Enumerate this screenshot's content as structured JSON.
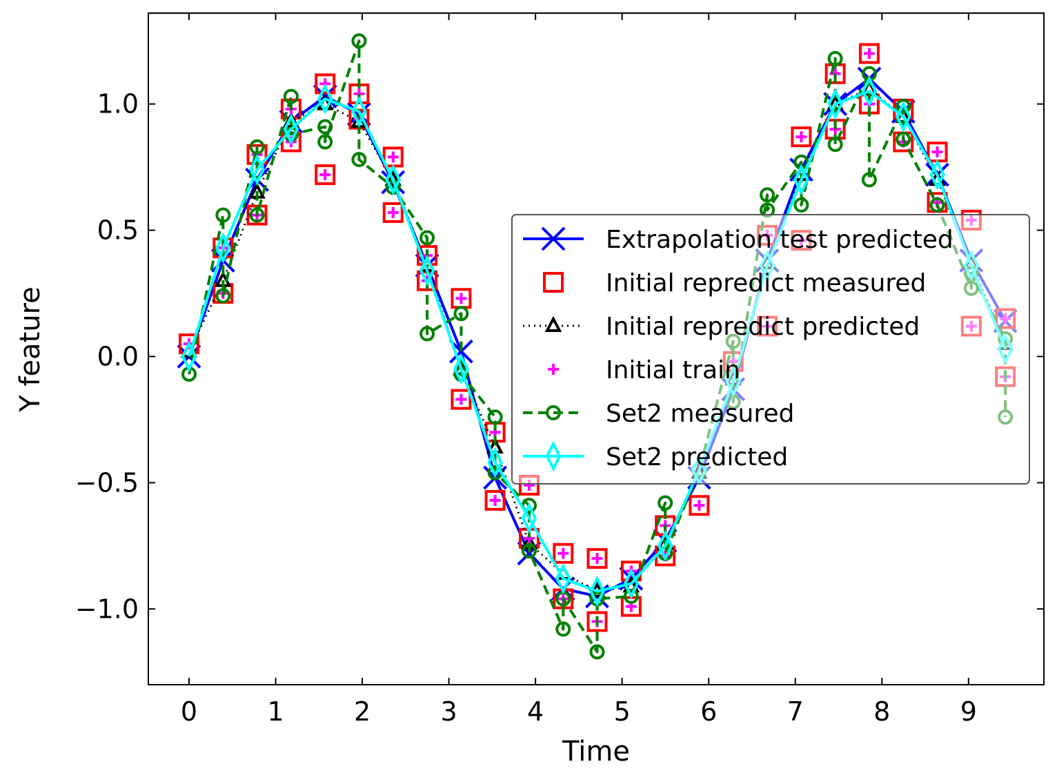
{
  "chart_data": {
    "type": "line",
    "xlabel": "Time",
    "ylabel": "Y feature",
    "xlim": [
      -0.47,
      9.87
    ],
    "ylim": [
      -1.3,
      1.36
    ],
    "xticks": [
      0,
      1,
      2,
      3,
      4,
      5,
      6,
      7,
      8,
      9
    ],
    "xtick_labels": [
      "0",
      "1",
      "2",
      "3",
      "4",
      "5",
      "6",
      "7",
      "8",
      "9"
    ],
    "yticks": [
      -1.0,
      -0.5,
      0.0,
      0.5,
      1.0
    ],
    "ytick_labels": [
      "−1.0",
      "−0.5",
      "0.0",
      "0.5",
      "1.0"
    ],
    "grid": false,
    "legend_position": "center-right",
    "series": [
      {
        "name": "Extrapolation test predicted",
        "style": "solid-line-x-markers",
        "color": "#0000ff",
        "x": [
          0,
          0.393,
          0.785,
          1.178,
          1.571,
          1.963,
          2.356,
          2.749,
          3.142,
          3.534,
          3.927,
          4.32,
          4.712,
          5.105,
          5.498,
          5.89,
          6.283,
          6.676,
          7.069,
          7.461,
          7.854,
          8.247,
          8.639,
          9.032,
          9.425
        ],
        "y": [
          0.0,
          0.38,
          0.7,
          0.93,
          1.03,
          0.96,
          0.69,
          0.36,
          0.02,
          -0.48,
          -0.78,
          -0.92,
          -0.95,
          -0.88,
          -0.73,
          -0.48,
          -0.13,
          0.38,
          0.74,
          1.0,
          1.1,
          0.97,
          0.72,
          0.38,
          0.14
        ]
      },
      {
        "name": "Initial repredict measured",
        "style": "square-markers",
        "color": "#ff0000",
        "x": [
          0,
          0.393,
          0.393,
          0.785,
          0.785,
          1.178,
          1.178,
          1.571,
          1.571,
          1.963,
          1.963,
          2.356,
          2.356,
          2.749,
          2.749,
          3.142,
          3.142,
          3.534,
          3.534,
          3.927,
          3.927,
          4.32,
          4.32,
          4.712,
          4.712,
          5.105,
          5.105,
          5.498,
          5.498,
          5.89,
          6.283,
          6.676,
          6.676,
          7.069,
          7.069,
          7.461,
          7.461,
          7.854,
          7.854,
          8.247,
          8.247,
          8.639,
          8.639,
          9.032,
          9.032,
          9.425,
          9.425
        ],
        "y": [
          0.05,
          0.43,
          0.25,
          0.8,
          0.56,
          0.98,
          0.85,
          1.08,
          0.72,
          1.04,
          0.94,
          0.79,
          0.57,
          0.4,
          0.3,
          0.23,
          -0.17,
          -0.3,
          -0.57,
          -0.51,
          -0.72,
          -0.78,
          -0.96,
          -0.8,
          -1.05,
          -0.85,
          -0.99,
          -0.67,
          -0.79,
          -0.59,
          -0.02,
          0.48,
          0.12,
          0.87,
          0.46,
          1.12,
          0.9,
          1.2,
          1.0,
          0.98,
          0.85,
          0.81,
          0.61,
          0.54,
          0.12,
          0.15,
          -0.08
        ]
      },
      {
        "name": "Initial repredict predicted",
        "style": "dotted-line-triangle-markers",
        "color": "#000000",
        "x": [
          0,
          0.393,
          0.785,
          1.178,
          1.571,
          1.963,
          2.356,
          2.749,
          3.142,
          3.534,
          3.927,
          4.32,
          4.712,
          5.105,
          5.498,
          5.89,
          6.283,
          6.676,
          7.069,
          7.461,
          7.854,
          8.247,
          8.639,
          9.032,
          9.425
        ],
        "y": [
          0.02,
          0.3,
          0.65,
          0.93,
          1.0,
          0.93,
          0.7,
          0.36,
          -0.05,
          -0.36,
          -0.74,
          -0.86,
          -0.93,
          -0.91,
          -0.74,
          -0.46,
          -0.09,
          0.37,
          0.72,
          1.0,
          1.06,
          0.95,
          0.7,
          0.37,
          0.05
        ]
      },
      {
        "name": "Initial train",
        "style": "plus-markers",
        "color": "#ff00ff",
        "x": [
          0,
          0.393,
          0.393,
          0.785,
          0.785,
          1.178,
          1.178,
          1.571,
          1.571,
          1.963,
          1.963,
          2.356,
          2.356,
          2.749,
          2.749,
          3.142,
          3.142,
          3.534,
          3.534,
          3.927,
          3.927,
          4.32,
          4.32,
          4.712,
          4.712,
          5.105,
          5.105,
          5.498,
          5.498,
          5.89,
          6.283,
          6.676,
          6.676,
          7.069,
          7.069,
          7.461,
          7.461,
          7.854,
          7.854,
          8.247,
          8.247,
          8.639,
          8.639,
          9.032,
          9.032,
          9.425,
          9.425
        ],
        "y": [
          0.05,
          0.43,
          0.25,
          0.8,
          0.56,
          0.98,
          0.85,
          1.08,
          0.72,
          1.04,
          0.94,
          0.79,
          0.57,
          0.4,
          0.3,
          0.23,
          -0.17,
          -0.3,
          -0.57,
          -0.51,
          -0.72,
          -0.78,
          -0.96,
          -0.8,
          -1.05,
          -0.85,
          -0.99,
          -0.67,
          -0.79,
          -0.59,
          -0.02,
          0.48,
          0.12,
          0.87,
          0.46,
          1.12,
          0.9,
          1.2,
          1.0,
          0.98,
          0.85,
          0.81,
          0.61,
          0.54,
          0.12,
          0.15,
          -0.08
        ]
      },
      {
        "name": "Set2 measured",
        "style": "dashed-line-circle-markers",
        "color": "#008000",
        "x": [
          0,
          0.393,
          0.393,
          0.785,
          0.785,
          1.178,
          1.178,
          1.571,
          1.571,
          1.963,
          1.963,
          2.356,
          2.749,
          2.749,
          3.142,
          3.142,
          3.534,
          3.534,
          3.927,
          3.927,
          4.32,
          4.32,
          4.712,
          4.712,
          5.105,
          5.498,
          5.498,
          5.89,
          6.283,
          6.283,
          6.676,
          6.676,
          7.069,
          7.069,
          7.461,
          7.461,
          7.854,
          7.854,
          8.247,
          8.247,
          8.639,
          9.032,
          9.032,
          9.425,
          9.425
        ],
        "y": [
          -0.07,
          0.56,
          0.24,
          0.83,
          0.56,
          1.03,
          0.88,
          0.91,
          0.85,
          1.25,
          0.78,
          0.67,
          0.47,
          0.09,
          0.17,
          -0.07,
          -0.24,
          -0.46,
          -0.59,
          -0.77,
          -1.08,
          -0.96,
          -1.17,
          -0.96,
          -0.95,
          -0.58,
          -0.78,
          -0.45,
          0.06,
          -0.18,
          0.64,
          0.58,
          0.77,
          0.6,
          1.18,
          0.84,
          1.12,
          0.7,
          0.99,
          0.86,
          0.6,
          0.27,
          0.33,
          0.07,
          -0.24
        ]
      },
      {
        "name": "Set2 predicted",
        "style": "solid-line-thin-diamond-markers",
        "color": "#00ffff",
        "x": [
          0,
          0.393,
          0.785,
          1.178,
          1.571,
          1.963,
          2.356,
          2.749,
          3.142,
          3.534,
          3.927,
          4.32,
          4.712,
          5.105,
          5.498,
          5.89,
          6.283,
          6.676,
          7.069,
          7.461,
          7.854,
          8.247,
          8.639,
          9.032,
          9.425
        ],
        "y": [
          0.0,
          0.43,
          0.74,
          0.9,
          1.02,
          0.97,
          0.7,
          0.34,
          -0.05,
          -0.42,
          -0.64,
          -0.88,
          -0.93,
          -0.9,
          -0.75,
          -0.45,
          -0.1,
          0.36,
          0.7,
          1.0,
          1.05,
          0.95,
          0.72,
          0.36,
          0.03
        ]
      }
    ]
  }
}
